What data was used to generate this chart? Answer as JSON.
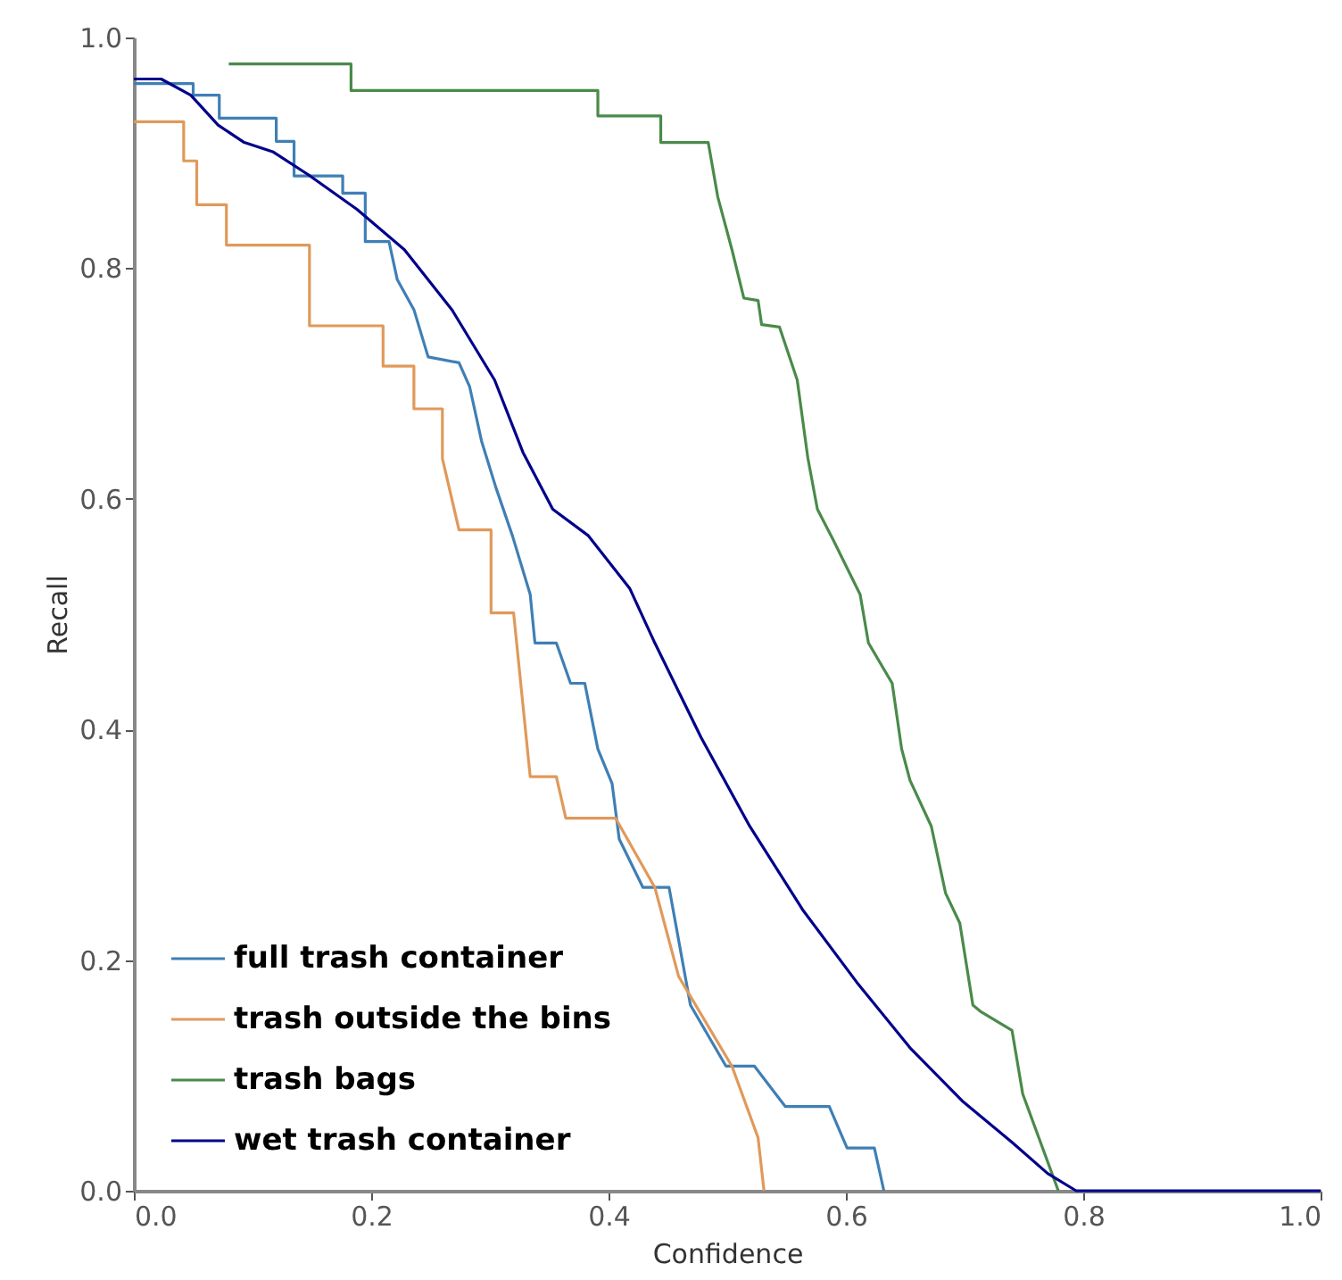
{
  "chart_data": {
    "type": "line",
    "xlabel": "Confidence",
    "ylabel": "Recall",
    "xlim": [
      0,
      1
    ],
    "ylim": [
      0,
      1
    ],
    "xticks": [
      {
        "value": 0,
        "label": "0.0"
      },
      {
        "value": 0.2,
        "label": "0.2"
      },
      {
        "value": 0.4,
        "label": "0.4"
      },
      {
        "value": 0.6,
        "label": "0.6"
      },
      {
        "value": 0.8,
        "label": "0.8"
      },
      {
        "value": 1,
        "label": "1.0"
      }
    ],
    "yticks": [
      {
        "value": 0,
        "label": "0.0"
      },
      {
        "value": 0.2,
        "label": "0.2"
      },
      {
        "value": 0.4,
        "label": "0.4"
      },
      {
        "value": 0.6,
        "label": "0.6"
      },
      {
        "value": 0.8,
        "label": "0.8"
      },
      {
        "value": 1,
        "label": "1.0"
      }
    ],
    "grid": false,
    "legend": "bottom left",
    "series": [
      {
        "name": "full trash container",
        "color": "#3f7fb5",
        "x": [
          0,
          0.05,
          0.05,
          0.072,
          0.072,
          0.12,
          0.12,
          0.135,
          0.135,
          0.176,
          0.176,
          0.195,
          0.195,
          0.215,
          0.222,
          0.236,
          0.248,
          0.274,
          0.283,
          0.293,
          0.305,
          0.319,
          0.334,
          0.338,
          0.356,
          0.368,
          0.38,
          0.391,
          0.403,
          0.409,
          0.429,
          0.451,
          0.469,
          0.499,
          0.523,
          0.549,
          0.586,
          0.601,
          0.624,
          0.632
        ],
        "values": [
          0.96,
          0.96,
          0.95,
          0.95,
          0.93,
          0.93,
          0.91,
          0.91,
          0.88,
          0.88,
          0.865,
          0.865,
          0.823,
          0.823,
          0.79,
          0.764,
          0.723,
          0.718,
          0.697,
          0.65,
          0.61,
          0.568,
          0.517,
          0.475,
          0.475,
          0.44,
          0.44,
          0.383,
          0.353,
          0.305,
          0.263,
          0.263,
          0.161,
          0.108,
          0.108,
          0.073,
          0.073,
          0.037,
          0.037,
          0
        ]
      },
      {
        "name": "trash outside the bins",
        "color": "#e0995a",
        "x": [
          0,
          0.042,
          0.042,
          0.053,
          0.053,
          0.078,
          0.078,
          0.148,
          0.148,
          0.21,
          0.21,
          0.236,
          0.236,
          0.26,
          0.26,
          0.274,
          0.301,
          0.301,
          0.32,
          0.334,
          0.356,
          0.364,
          0.406,
          0.439,
          0.459,
          0.504,
          0.526,
          0.531
        ],
        "values": [
          0.927,
          0.927,
          0.893,
          0.893,
          0.855,
          0.855,
          0.82,
          0.82,
          0.75,
          0.75,
          0.715,
          0.715,
          0.678,
          0.678,
          0.635,
          0.573,
          0.573,
          0.501,
          0.501,
          0.359,
          0.359,
          0.323,
          0.323,
          0.263,
          0.186,
          0.108,
          0.046,
          0
        ]
      },
      {
        "name": "trash bags",
        "color": "#4a8a4a",
        "x": [
          0.08,
          0.183,
          0.183,
          0.391,
          0.391,
          0.444,
          0.444,
          0.484,
          0.492,
          0.504,
          0.514,
          0.526,
          0.529,
          0.544,
          0.559,
          0.568,
          0.576,
          0.589,
          0.612,
          0.619,
          0.639,
          0.647,
          0.654,
          0.672,
          0.684,
          0.696,
          0.707,
          0.714,
          0.74,
          0.749,
          0.779
        ],
        "values": [
          0.977,
          0.977,
          0.954,
          0.954,
          0.932,
          0.932,
          0.909,
          0.909,
          0.862,
          0.816,
          0.774,
          0.772,
          0.751,
          0.749,
          0.703,
          0.635,
          0.591,
          0.565,
          0.517,
          0.475,
          0.44,
          0.383,
          0.356,
          0.316,
          0.258,
          0.232,
          0.161,
          0.155,
          0.139,
          0.084,
          0
        ]
      },
      {
        "name": "wet trash container",
        "color": "#00008b",
        "x": [
          0,
          0.023,
          0.048,
          0.071,
          0.093,
          0.117,
          0.147,
          0.188,
          0.228,
          0.268,
          0.304,
          0.328,
          0.353,
          0.383,
          0.418,
          0.439,
          0.478,
          0.519,
          0.564,
          0.609,
          0.654,
          0.699,
          0.74,
          0.77,
          0.794,
          1
        ],
        "values": [
          0.964,
          0.964,
          0.95,
          0.924,
          0.909,
          0.901,
          0.881,
          0.851,
          0.816,
          0.764,
          0.703,
          0.64,
          0.591,
          0.568,
          0.522,
          0.475,
          0.393,
          0.316,
          0.243,
          0.181,
          0.124,
          0.077,
          0.042,
          0.015,
          0,
          0
        ]
      }
    ]
  }
}
